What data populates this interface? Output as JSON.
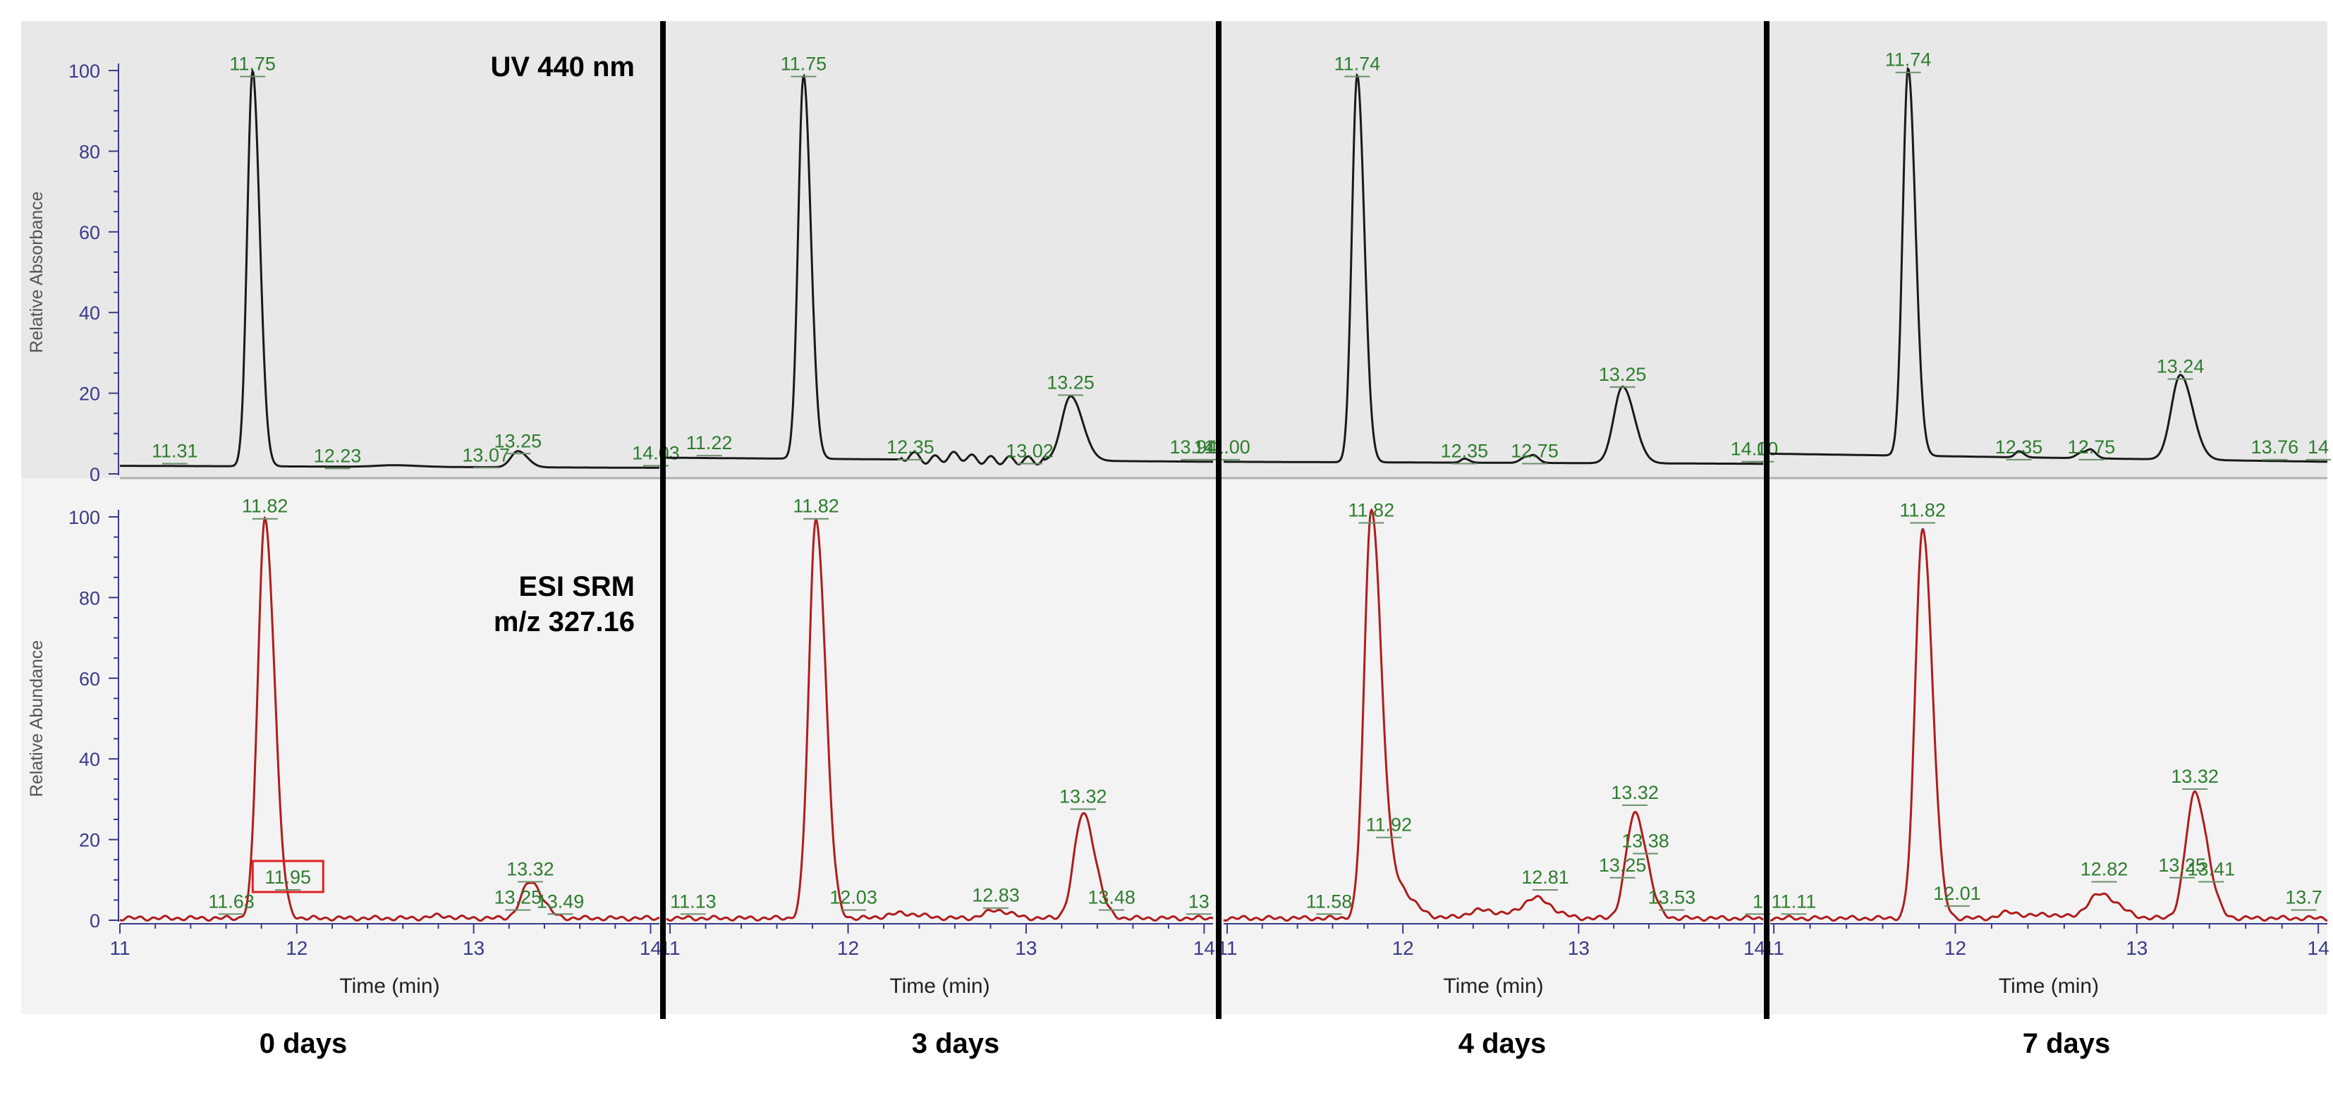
{
  "chart_data": {
    "type": "line",
    "description_axes": {
      "x_label": "Time (min)",
      "y_label_top": "Relative Absorbance",
      "y_label_bottom": "Relative Abundance",
      "y_ticks": [
        0,
        20,
        40,
        60,
        80,
        100
      ],
      "ylim": [
        0,
        100
      ]
    },
    "top_title": "UV 440 nm",
    "bottom_title_line1": "ESI SRM",
    "bottom_title_line2": "m/z 327.16",
    "panels": [
      {
        "caption": "0 days",
        "x_range": [
          11,
          14.05
        ],
        "x_tick_labels": [
          "11",
          "12",
          "13",
          "14"
        ],
        "uv": {
          "baseline_start": 2,
          "baseline_end": 1.5,
          "peaks": [
            [
              11.75,
              98,
              0.03
            ],
            [
              13.25,
              4,
              0.04
            ],
            [
              12.55,
              0.4,
              0.1
            ]
          ],
          "labels": [
            {
              "text": "11.31",
              "x": 11.31,
              "y": 2
            },
            {
              "text": "11.75",
              "x": 11.75,
              "y": 98
            },
            {
              "text": "12.23",
              "x": 12.23,
              "y": 0.8
            },
            {
              "text": "13.07",
              "x": 13.07,
              "y": 1
            },
            {
              "text": "13.25",
              "x": 13.25,
              "y": 4.5
            },
            {
              "text": "14.03",
              "x": 14.03,
              "y": 1.5
            }
          ]
        },
        "ms": {
          "baseline_start": 0.5,
          "baseline_end": 0.5,
          "peaks": [
            [
              11.82,
              99,
              0.04
            ],
            [
              13.32,
              9,
              0.05
            ],
            [
              12.8,
              0.6,
              0.05
            ]
          ],
          "labels": [
            {
              "text": "11.63",
              "x": 11.63,
              "y": 1
            },
            {
              "text": "11.82",
              "x": 11.82,
              "y": 99
            },
            {
              "text": "11.95",
              "x": 11.95,
              "y": 7,
              "boxed": true
            },
            {
              "text": "13.25",
              "x": 13.25,
              "y": 2
            },
            {
              "text": "13.32",
              "x": 13.32,
              "y": 9
            },
            {
              "text": "13.49",
              "x": 13.49,
              "y": 1
            }
          ]
        }
      },
      {
        "caption": "3 days",
        "x_range": [
          10.98,
          14.05
        ],
        "x_tick_labels": [
          "11",
          "12",
          "13",
          "14"
        ],
        "uv": {
          "baseline_start": 4,
          "baseline_end": 3,
          "peaks": [
            [
              11.75,
              95,
              0.03
            ],
            [
              13.25,
              16,
              0.05
            ],
            [
              12.35,
              1.5,
              0.02
            ],
            [
              12.6,
              1,
              0.05
            ]
          ],
          "labels": [
            {
              "text": "11.22",
              "x": 11.22,
              "y": 4
            },
            {
              "text": "11.75",
              "x": 11.75,
              "y": 98
            },
            {
              "text": "12.35",
              "x": 12.35,
              "y": 3
            },
            {
              "text": "13.02",
              "x": 13.02,
              "y": 2
            },
            {
              "text": "13.25",
              "x": 13.25,
              "y": 19
            },
            {
              "text": "13.94",
              "x": 13.94,
              "y": 3
            },
            {
              "text": "14",
              "x": 14.0,
              "y": 3
            }
          ]
        },
        "ms": {
          "baseline_start": 0.5,
          "baseline_end": 0.5,
          "peaks": [
            [
              11.82,
              99,
              0.04
            ],
            [
              13.32,
              26,
              0.05
            ],
            [
              12.83,
              2,
              0.06
            ],
            [
              12.3,
              1.2,
              0.08
            ]
          ],
          "labels": [
            {
              "text": "11.13",
              "x": 11.13,
              "y": 1
            },
            {
              "text": "11.82",
              "x": 11.82,
              "y": 99
            },
            {
              "text": "12.03",
              "x": 12.03,
              "y": 2
            },
            {
              "text": "12.83",
              "x": 12.83,
              "y": 2.5
            },
            {
              "text": "13.32",
              "x": 13.32,
              "y": 27
            },
            {
              "text": "13.48",
              "x": 13.48,
              "y": 2
            },
            {
              "text": "13",
              "x": 13.97,
              "y": 1
            }
          ]
        }
      },
      {
        "caption": "4 days",
        "x_range": [
          10.98,
          14.05
        ],
        "x_tick_labels": [
          "11",
          "12",
          "13",
          "14"
        ],
        "uv": {
          "baseline_start": 3,
          "baseline_end": 2.5,
          "peaks": [
            [
              11.74,
              96,
              0.03
            ],
            [
              13.25,
              19,
              0.05
            ],
            [
              12.35,
              1,
              0.02
            ],
            [
              12.7,
              1.5,
              0.03
            ],
            [
              12.75,
              1.2,
              0.02
            ]
          ],
          "labels": [
            {
              "text": "11.00",
              "x": 11.0,
              "y": 3
            },
            {
              "text": "11.74",
              "x": 11.74,
              "y": 98
            },
            {
              "text": "12.35",
              "x": 12.35,
              "y": 2
            },
            {
              "text": "12.75",
              "x": 12.75,
              "y": 2
            },
            {
              "text": "13.25",
              "x": 13.25,
              "y": 21
            },
            {
              "text": "14.00",
              "x": 14.0,
              "y": 2.5
            },
            {
              "text": "1",
              "x": 14.04,
              "y": 2.5
            }
          ]
        },
        "ms": {
          "baseline_start": 0.5,
          "baseline_end": 0.5,
          "peaks": [
            [
              11.82,
              97,
              0.04
            ],
            [
              13.32,
              26,
              0.05
            ],
            [
              12.75,
              5,
              0.07
            ],
            [
              12.45,
              2,
              0.08
            ],
            [
              11.92,
              10,
              0.08
            ]
          ],
          "labels": [
            {
              "text": "11.58",
              "x": 11.58,
              "y": 1
            },
            {
              "text": "11.82",
              "x": 11.82,
              "y": 98
            },
            {
              "text": "11.92",
              "x": 11.92,
              "y": 20
            },
            {
              "text": "12.81",
              "x": 12.81,
              "y": 7
            },
            {
              "text": "13.25",
              "x": 13.25,
              "y": 10
            },
            {
              "text": "13.32",
              "x": 13.32,
              "y": 28
            },
            {
              "text": "13.38",
              "x": 13.38,
              "y": 16
            },
            {
              "text": "13.53",
              "x": 13.53,
              "y": 2
            },
            {
              "text": "1",
              "x": 14.02,
              "y": 1
            }
          ]
        }
      },
      {
        "caption": "7 days",
        "x_range": [
          10.98,
          14.05
        ],
        "x_tick_labels": [
          "11",
          "12",
          "13",
          "14"
        ],
        "uv": {
          "baseline_start": 5,
          "baseline_end": 3,
          "peaks": [
            [
              11.74,
              96,
              0.03
            ],
            [
              13.24,
              21,
              0.05
            ],
            [
              12.35,
              1.5,
              0.02
            ],
            [
              12.7,
              1.5,
              0.03
            ],
            [
              12.75,
              1.5,
              0.02
            ]
          ],
          "labels": [
            {
              "text": "11.74",
              "x": 11.74,
              "y": 99
            },
            {
              "text": "12.35",
              "x": 12.35,
              "y": 3
            },
            {
              "text": "12.75",
              "x": 12.75,
              "y": 3
            },
            {
              "text": "13.24",
              "x": 13.24,
              "y": 23
            },
            {
              "text": "13.76",
              "x": 13.76,
              "y": 3
            },
            {
              "text": "14",
              "x": 14.0,
              "y": 3
            }
          ]
        },
        "ms": {
          "baseline_start": 0.5,
          "baseline_end": 0.5,
          "peaks": [
            [
              11.82,
              97,
              0.04
            ],
            [
              13.32,
              31,
              0.05
            ],
            [
              12.8,
              6,
              0.07
            ],
            [
              12.3,
              1.5,
              0.05
            ],
            [
              12.5,
              1,
              0.05
            ]
          ],
          "labels": [
            {
              "text": "11.11",
              "x": 11.11,
              "y": 1
            },
            {
              "text": "11.82",
              "x": 11.82,
              "y": 98
            },
            {
              "text": "12.01",
              "x": 12.01,
              "y": 3
            },
            {
              "text": "12.82",
              "x": 12.82,
              "y": 9
            },
            {
              "text": "13.25",
              "x": 13.25,
              "y": 10
            },
            {
              "text": "13.32",
              "x": 13.32,
              "y": 32
            },
            {
              "text": "13.41",
              "x": 13.41,
              "y": 9
            },
            {
              "text": "13.7",
              "x": 13.92,
              "y": 2
            }
          ]
        }
      }
    ]
  },
  "colors": {
    "uv_trace": "#1a1a1a",
    "ms_trace": "#b01c1c",
    "label_green": "#2e7d2e",
    "axis_blue": "#3a3a8c",
    "panel_top_bg": "#e8e8e8",
    "panel_bottom_bg": "#f3f3f3",
    "separator": "#000000",
    "box_red": "#e02020"
  }
}
